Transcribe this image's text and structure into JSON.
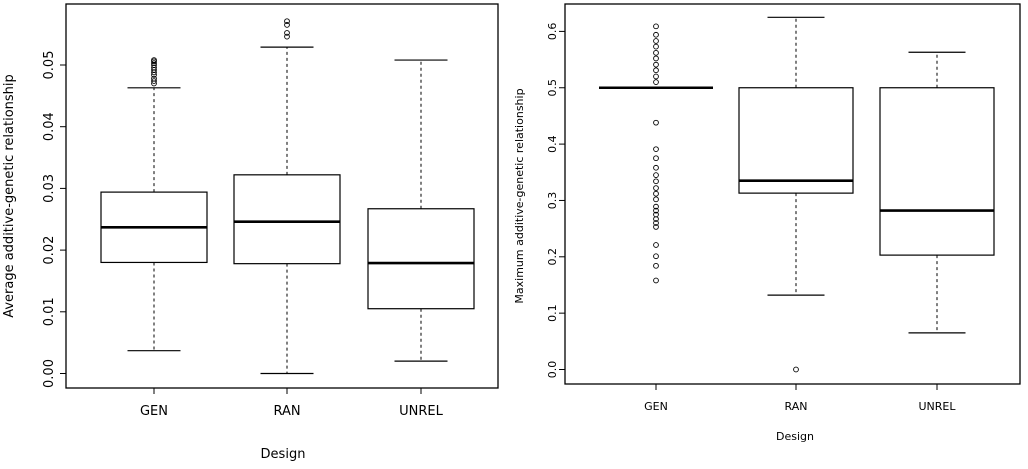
{
  "chart_data": [
    {
      "type": "box",
      "title": "",
      "xlabel": "Design",
      "ylabel": "Average additive-genetic relationship",
      "ylim": [
        0,
        0.057
      ],
      "yticks": [
        "0.00",
        "0.01",
        "0.02",
        "0.03",
        "0.04",
        "0.05"
      ],
      "ytick_values": [
        0,
        0.01,
        0.02,
        0.03,
        0.04,
        0.05
      ],
      "categories": [
        "GEN",
        "RAN",
        "UNREL"
      ],
      "boxes": [
        {
          "category": "GEN",
          "whisker_low": 0.0037,
          "q1": 0.018,
          "median": 0.0237,
          "q3": 0.0294,
          "whisker_high": 0.0463,
          "outliers": [
            0.047,
            0.0474,
            0.0478,
            0.0484,
            0.0488,
            0.0492,
            0.0496,
            0.05,
            0.0503,
            0.0506,
            0.0508
          ]
        },
        {
          "category": "RAN",
          "whisker_low": 0.0,
          "q1": 0.0178,
          "median": 0.0246,
          "q3": 0.0322,
          "whisker_high": 0.0529,
          "outliers": [
            0.0546,
            0.0552,
            0.0565,
            0.0571
          ]
        },
        {
          "category": "UNREL",
          "whisker_low": 0.002,
          "q1": 0.0105,
          "median": 0.0179,
          "q3": 0.0267,
          "whisker_high": 0.0508,
          "outliers": []
        }
      ],
      "grid": false,
      "legend": "none"
    },
    {
      "type": "box",
      "title": "",
      "xlabel": "Design",
      "ylabel": "Maximum additive-genetic relationship",
      "ylim": [
        -0.02,
        0.64
      ],
      "yticks": [
        "0.0",
        "0.1",
        "0.2",
        "0.3",
        "0.4",
        "0.5",
        "0.6"
      ],
      "ytick_values": [
        0,
        0.1,
        0.2,
        0.3,
        0.4,
        0.5,
        0.6
      ],
      "categories": [
        "GEN",
        "RAN",
        "UNREL"
      ],
      "boxes": [
        {
          "category": "GEN",
          "whisker_low": 0.5,
          "q1": 0.5,
          "median": 0.5,
          "q3": 0.5,
          "whisker_high": 0.5,
          "outliers": [
            0.158,
            0.184,
            0.201,
            0.221,
            0.253,
            0.26,
            0.267,
            0.275,
            0.282,
            0.289,
            0.302,
            0.312,
            0.322,
            0.334,
            0.345,
            0.358,
            0.375,
            0.391,
            0.438,
            0.51,
            0.52,
            0.531,
            0.541,
            0.552,
            0.562,
            0.573,
            0.583,
            0.594,
            0.609
          ]
        },
        {
          "category": "RAN",
          "whisker_low": 0.132,
          "q1": 0.313,
          "median": 0.335,
          "q3": 0.5,
          "whisker_high": 0.625,
          "outliers": [
            0.0
          ]
        },
        {
          "category": "UNREL",
          "whisker_low": 0.065,
          "q1": 0.203,
          "median": 0.282,
          "q3": 0.5,
          "whisker_high": 0.563,
          "outliers": []
        }
      ],
      "grid": false,
      "legend": "none"
    }
  ]
}
